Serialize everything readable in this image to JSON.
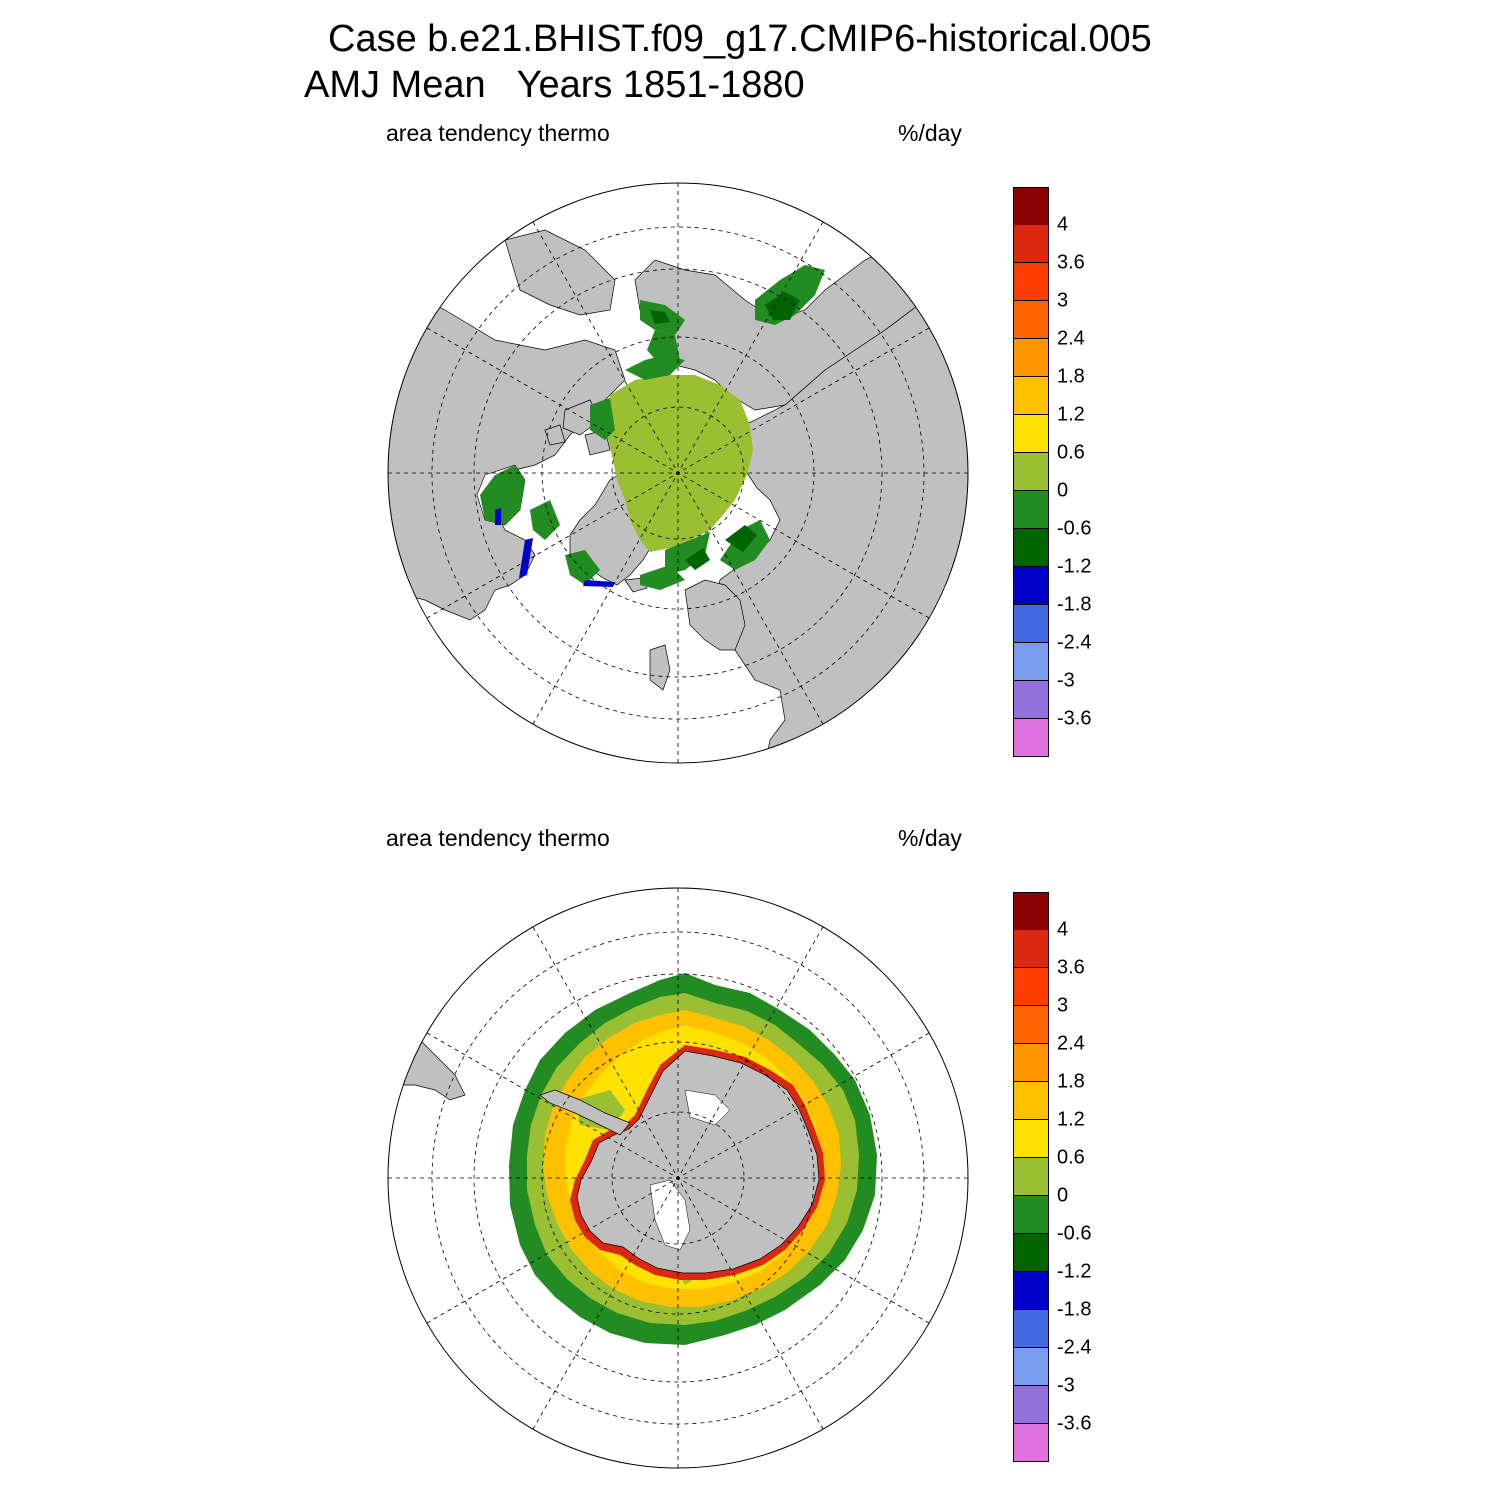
{
  "figure": {
    "title_line1": "Case b.e21.BHIST.f09_g17.CMIP6-historical.005",
    "title_line2": "AMJ Mean   Years 1851-1880"
  },
  "colors": {
    "land": "#c0c0c0",
    "ocean_nodata": "#ffffff",
    "gridline": "#000000",
    "levels": [
      "#8b0000",
      "#dc2810",
      "#ff3c00",
      "#ff6400",
      "#ff9600",
      "#ffc000",
      "#ffe100",
      "#9bbf32",
      "#228b22",
      "#006400",
      "#0000cd",
      "#4169e1",
      "#7a9cf0",
      "#9370db",
      "#e270de"
    ]
  },
  "colorbar": {
    "labels": [
      "4",
      "3.6",
      "3",
      "2.4",
      "1.8",
      "1.2",
      "0.6",
      "0",
      "-0.6",
      "-1.2",
      "-1.8",
      "-2.4",
      "-3",
      "-3.6"
    ]
  },
  "panels": [
    {
      "id": "north",
      "label_left": "area tendency thermo",
      "label_right": "%/day",
      "hemisphere": "Northern"
    },
    {
      "id": "south",
      "label_left": "area tendency thermo",
      "label_right": "%/day",
      "hemisphere": "Southern"
    }
  ]
}
